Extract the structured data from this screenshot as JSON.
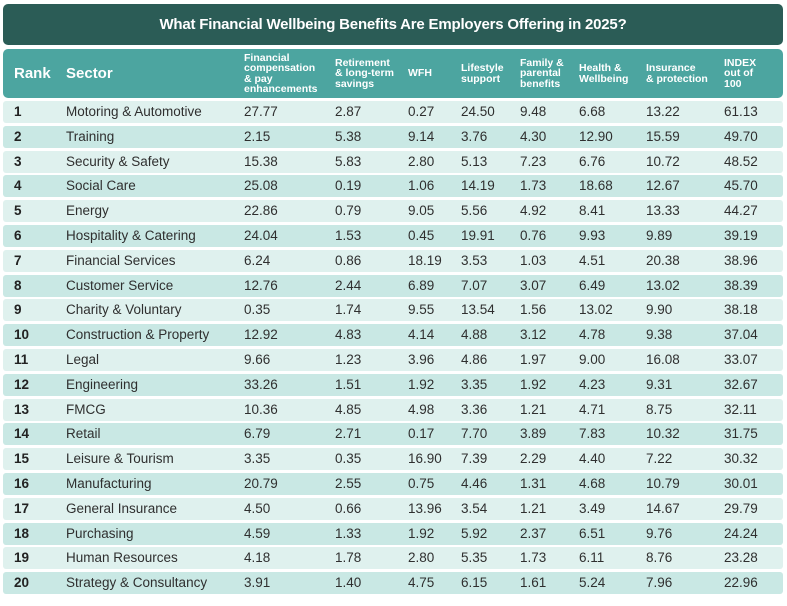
{
  "chart_data": {
    "type": "table",
    "title": "What Financial Wellbeing Benefits Are Employers Offering in 2025?",
    "columns": [
      "Rank",
      "Sector",
      "Financial compensation & pay enhancements",
      "Retirement & long-term savings",
      "WFH",
      "Lifestyle support",
      "Family & parental benefits",
      "Health & Wellbeing",
      "Insurance & protection",
      "INDEX out of 100"
    ],
    "header_lines": [
      [
        "Rank"
      ],
      [
        "Sector"
      ],
      [
        "Financial",
        "compensation",
        "& pay",
        "enhancements"
      ],
      [
        "Retirement",
        "& long-term",
        "savings"
      ],
      [
        "WFH"
      ],
      [
        "Lifestyle",
        "support"
      ],
      [
        "Family &",
        "parental",
        "benefits"
      ],
      [
        "Health &",
        "Wellbeing"
      ],
      [
        "Insurance",
        "& protection"
      ],
      [
        "INDEX",
        "out of",
        "100"
      ]
    ],
    "rows": [
      [
        "1",
        "Motoring & Automotive",
        "27.77",
        "2.87",
        "0.27",
        "24.50",
        "9.48",
        "6.68",
        "13.22",
        "61.13"
      ],
      [
        "2",
        "Training",
        "2.15",
        "5.38",
        "9.14",
        "3.76",
        "4.30",
        "12.90",
        "15.59",
        "49.70"
      ],
      [
        "3",
        "Security & Safety",
        "15.38",
        "5.83",
        "2.80",
        "5.13",
        "7.23",
        "6.76",
        "10.72",
        "48.52"
      ],
      [
        "4",
        "Social Care",
        "25.08",
        "0.19",
        "1.06",
        "14.19",
        "1.73",
        "18.68",
        "12.67",
        "45.70"
      ],
      [
        "5",
        "Energy",
        "22.86",
        "0.79",
        "9.05",
        "5.56",
        "4.92",
        "8.41",
        "13.33",
        "44.27"
      ],
      [
        "6",
        "Hospitality & Catering",
        "24.04",
        "1.53",
        "0.45",
        "19.91",
        "0.76",
        "9.93",
        "9.89",
        "39.19"
      ],
      [
        "7",
        "Financial Services",
        "6.24",
        "0.86",
        "18.19",
        "3.53",
        "1.03",
        "4.51",
        "20.38",
        "38.96"
      ],
      [
        "8",
        "Customer Service",
        "12.76",
        "2.44",
        "6.89",
        "7.07",
        "3.07",
        "6.49",
        "13.02",
        "38.39"
      ],
      [
        "9",
        "Charity & Voluntary",
        "0.35",
        "1.74",
        "9.55",
        "13.54",
        "1.56",
        "13.02",
        "9.90",
        "38.18"
      ],
      [
        "10",
        "Construction & Property",
        "12.92",
        "4.83",
        "4.14",
        "4.88",
        "3.12",
        "4.78",
        "9.38",
        "37.04"
      ],
      [
        "11",
        "Legal",
        "9.66",
        "1.23",
        "3.96",
        "4.86",
        "1.97",
        "9.00",
        "16.08",
        "33.07"
      ],
      [
        "12",
        "Engineering",
        "33.26",
        "1.51",
        "1.92",
        "3.35",
        "1.92",
        "4.23",
        "9.31",
        "32.67"
      ],
      [
        "13",
        "FMCG",
        "10.36",
        "4.85",
        "4.98",
        "3.36",
        "1.21",
        "4.71",
        "8.75",
        "32.11"
      ],
      [
        "14",
        "Retail",
        "6.79",
        "2.71",
        "0.17",
        "7.70",
        "3.89",
        "7.83",
        "10.32",
        "31.75"
      ],
      [
        "15",
        "Leisure & Tourism",
        "3.35",
        "0.35",
        "16.90",
        "7.39",
        "2.29",
        "4.40",
        "7.22",
        "30.32"
      ],
      [
        "16",
        "Manufacturing",
        "20.79",
        "2.55",
        "0.75",
        "4.46",
        "1.31",
        "4.68",
        "10.79",
        "30.01"
      ],
      [
        "17",
        "General Insurance",
        "4.50",
        "0.66",
        "13.96",
        "3.54",
        "1.21",
        "3.49",
        "14.67",
        "29.79"
      ],
      [
        "18",
        "Purchasing",
        "4.59",
        "1.33",
        "1.92",
        "5.92",
        "2.37",
        "6.51",
        "9.76",
        "24.24"
      ],
      [
        "19",
        "Human Resources",
        "4.18",
        "1.78",
        "2.80",
        "5.35",
        "1.73",
        "6.11",
        "8.76",
        "23.28"
      ],
      [
        "20",
        "Strategy & Consultancy",
        "3.91",
        "1.40",
        "4.75",
        "6.15",
        "1.61",
        "5.24",
        "7.96",
        "22.96"
      ]
    ],
    "colors": {
      "title_bg": "#2b5c56",
      "header_bg": "#4ca5a0",
      "row_light": "#dff1ee",
      "row_dark": "#c9e8e4"
    }
  }
}
